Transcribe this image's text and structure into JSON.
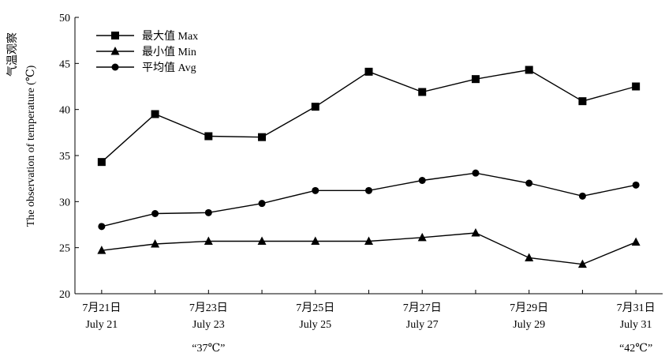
{
  "chart_data": {
    "type": "line",
    "title": "",
    "ylabel": {
      "line1": "气温观察",
      "line2": "The observation of temperature (℃)"
    },
    "xlabel": "",
    "ylim": [
      20,
      50
    ],
    "yticks": [
      20,
      25,
      30,
      35,
      40,
      45,
      50
    ],
    "x": [
      1,
      2,
      3,
      4,
      5,
      6,
      7,
      8,
      9,
      10,
      11
    ],
    "xticks": [
      {
        "x": 1,
        "cn": "7月21日",
        "en": "July 21"
      },
      {
        "x": 3,
        "cn": "7月23日",
        "en": "July 23"
      },
      {
        "x": 5,
        "cn": "7月25日",
        "en": "July 25"
      },
      {
        "x": 7,
        "cn": "7月27日",
        "en": "July 27"
      },
      {
        "x": 9,
        "cn": "7月29日",
        "en": "July 29"
      },
      {
        "x": 11,
        "cn": "7月31日",
        "en": "July 31"
      }
    ],
    "annotations": [
      {
        "x": 3,
        "text": "“37℃”"
      },
      {
        "x": 11,
        "text": "“42℃”"
      }
    ],
    "legend_position": "top-left",
    "grid": false,
    "series": [
      {
        "name": "最大值 Max",
        "marker": "square",
        "values": [
          34.3,
          39.5,
          37.1,
          37.0,
          40.3,
          44.1,
          41.9,
          43.3,
          44.3,
          40.9,
          42.5
        ]
      },
      {
        "name": "最小值 Min",
        "marker": "triangle",
        "values": [
          24.7,
          25.4,
          25.7,
          25.7,
          25.7,
          25.7,
          26.1,
          26.6,
          23.9,
          23.2,
          25.6
        ]
      },
      {
        "name": "平均值 Avg",
        "marker": "circle",
        "values": [
          27.3,
          28.7,
          28.8,
          29.8,
          31.2,
          31.2,
          32.3,
          33.1,
          32.0,
          30.6,
          31.8
        ]
      }
    ]
  }
}
